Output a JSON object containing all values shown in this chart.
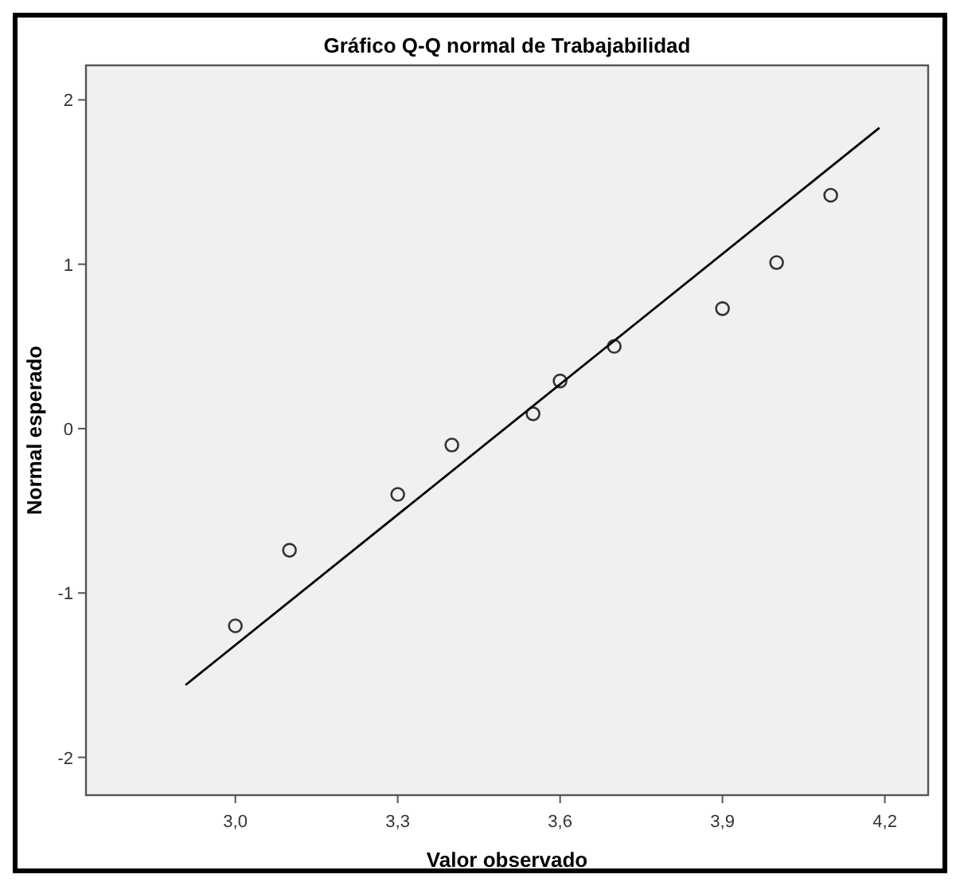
{
  "chart_data": {
    "type": "scatter",
    "title": "Gráfico Q-Q normal de Trabajabilidad",
    "xlabel": "Valor observado",
    "ylabel": "Normal esperado",
    "xlim": [
      2.724,
      4.28
    ],
    "xticks": [
      {
        "value": 3.0,
        "label": "3,0"
      },
      {
        "value": 3.3,
        "label": "3,3"
      },
      {
        "value": 3.6,
        "label": "3,6"
      },
      {
        "value": 3.9,
        "label": "3,9"
      },
      {
        "value": 4.2,
        "label": "4,2"
      }
    ],
    "ylim": [
      -2.23,
      2.21
    ],
    "yticks": [
      -2,
      -1,
      0,
      1,
      2
    ],
    "grid": false,
    "series": [
      {
        "marker": "circle",
        "color": "#333333",
        "x": [
          3.0,
          3.1,
          3.3,
          3.4,
          3.55,
          3.6,
          3.7,
          3.9,
          4.0,
          4.1
        ],
        "values": [
          -1.2,
          -0.74,
          -0.4,
          -0.1,
          0.09,
          0.29,
          0.5,
          0.73,
          1.01,
          1.42
        ]
      },
      {
        "type": "line",
        "marker": "none",
        "color": "#000000",
        "x": [
          2.908,
          4.19
        ],
        "values": [
          -1.56,
          1.83
        ]
      }
    ]
  }
}
